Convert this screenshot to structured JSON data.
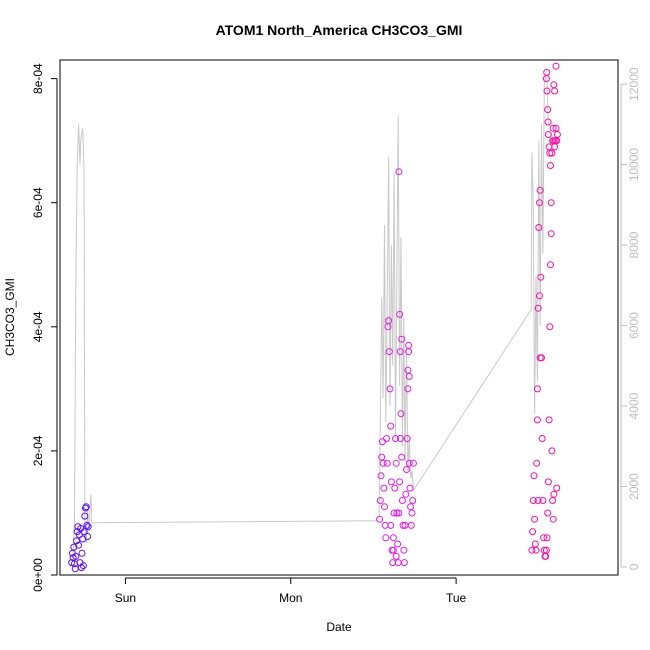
{
  "chart_data": {
    "type": "scatter",
    "title": "ATOM1 North_America CH3CO3_GMI",
    "xlabel": "Date",
    "ylabel": "CH3CO3_GMI",
    "x_ticks": [
      {
        "label": "Sun",
        "value": 0
      },
      {
        "label": "Mon",
        "value": 24
      },
      {
        "label": "Tue",
        "value": 48
      }
    ],
    "x_range_hours": [
      -9.5,
      71.5
    ],
    "y_left": {
      "range": [
        0,
        0.00083
      ],
      "ticks": [
        {
          "label": "0e+00",
          "value": 0
        },
        {
          "label": "2e-04",
          "value": 0.0002
        },
        {
          "label": "4e-04",
          "value": 0.0004
        },
        {
          "label": "6e-04",
          "value": 0.0006
        },
        {
          "label": "8e-04",
          "value": 0.0008
        }
      ]
    },
    "y_right": {
      "range": [
        -200,
        12600
      ],
      "color": "#bdbdbd",
      "ticks": [
        {
          "label": "0",
          "value": 0
        },
        {
          "label": "2000",
          "value": 2000
        },
        {
          "label": "4000",
          "value": 4000
        },
        {
          "label": "6000",
          "value": 6000
        },
        {
          "label": "8000",
          "value": 8000
        },
        {
          "label": "10000",
          "value": 10000
        },
        {
          "label": "12000",
          "value": 12000
        }
      ]
    },
    "secondary_line": {
      "color": "#c8c8c8",
      "points": [
        [
          -7.6,
          350
        ],
        [
          -7.4,
          1200
        ],
        [
          -7.2,
          7000
        ],
        [
          -7.0,
          10000
        ],
        [
          -6.8,
          11000
        ],
        [
          -6.6,
          10000
        ],
        [
          -6.5,
          10600
        ],
        [
          -6.3,
          10800
        ],
        [
          -6.2,
          10900
        ],
        [
          -6.0,
          9800
        ],
        [
          -5.9,
          1200
        ],
        [
          -5.7,
          600
        ],
        [
          -5.5,
          1400
        ],
        [
          -5.3,
          900
        ],
        [
          -5.1,
          1600
        ],
        [
          -5.0,
          1800
        ],
        [
          -4.9,
          1100
        ],
        [
          -4.8,
          1100
        ],
        [
          36.8,
          1150
        ],
        [
          37.0,
          3500
        ],
        [
          37.2,
          6700
        ],
        [
          37.4,
          4200
        ],
        [
          37.6,
          8500
        ],
        [
          37.8,
          3600
        ],
        [
          38.0,
          6500
        ],
        [
          38.2,
          10200
        ],
        [
          38.4,
          4000
        ],
        [
          38.6,
          8000
        ],
        [
          38.8,
          5000
        ],
        [
          39.0,
          9800
        ],
        [
          39.2,
          3200
        ],
        [
          39.4,
          7400
        ],
        [
          39.6,
          11200
        ],
        [
          39.8,
          4500
        ],
        [
          40.0,
          8200
        ],
        [
          40.2,
          3000
        ],
        [
          40.4,
          6200
        ],
        [
          40.6,
          2600
        ],
        [
          40.8,
          5400
        ],
        [
          41.0,
          2400
        ],
        [
          41.2,
          3200
        ],
        [
          41.4,
          2200
        ],
        [
          41.6,
          2400
        ],
        [
          41.8,
          1900
        ],
        [
          58.9,
          6400
        ],
        [
          59.0,
          10300
        ],
        [
          59.2,
          9000
        ],
        [
          59.4,
          3800
        ],
        [
          59.6,
          7200
        ],
        [
          59.8,
          4600
        ],
        [
          60.0,
          10600
        ],
        [
          60.2,
          6000
        ],
        [
          60.4,
          11000
        ],
        [
          60.6,
          7800
        ],
        [
          60.8,
          12000
        ],
        [
          61.0,
          12200
        ],
        [
          61.2,
          12100
        ],
        [
          61.4,
          11000
        ]
      ]
    },
    "series": [
      {
        "color": "#5a10ff",
        "points": [
          [
            -7.8,
            2e-05
          ],
          [
            -7.7,
            3.5e-05
          ],
          [
            -7.6,
            2.8e-05
          ],
          [
            -7.5,
            4.5e-05
          ],
          [
            -7.4,
            1.8e-05
          ],
          [
            -7.3,
            1e-05
          ],
          [
            -7.2,
            3e-05
          ],
          [
            -7.1,
            5.5e-05
          ],
          [
            -7.0,
            7e-05
          ],
          [
            -6.9,
            7.8e-05
          ],
          [
            -6.8,
            4.8e-05
          ],
          [
            -6.7,
            6.5e-05
          ],
          [
            -6.6,
            2e-05
          ],
          [
            -6.5,
            7.5e-05
          ],
          [
            -6.4,
            1.2e-05
          ],
          [
            -6.3,
            3.5e-05
          ],
          [
            -6.2,
            5.8e-05
          ],
          [
            -6.1,
            1.5e-05
          ],
          [
            -6.0,
            7e-05
          ],
          [
            -5.9,
            9.5e-05
          ],
          [
            -5.8,
            0.000108
          ],
          [
            -5.7,
            0.00011
          ],
          [
            -5.6,
            8e-05
          ],
          [
            -5.5,
            6.2e-05
          ],
          [
            -5.4,
            7.8e-05
          ]
        ]
      },
      {
        "color": "#e817f0",
        "points": [
          [
            36.9,
            9e-05
          ],
          [
            37.0,
            0.00012
          ],
          [
            37.1,
            0.00016
          ],
          [
            37.2,
            0.00019
          ],
          [
            37.3,
            0.000215
          ],
          [
            37.4,
            0.00018
          ],
          [
            37.5,
            0.00014
          ],
          [
            37.6,
            0.00011
          ],
          [
            37.7,
            8e-05
          ],
          [
            37.8,
            6e-05
          ],
          [
            37.9,
            0.00022
          ],
          [
            38.0,
            0.00018
          ],
          [
            38.1,
            0.0004
          ],
          [
            38.2,
            0.00041
          ],
          [
            38.3,
            0.00036
          ],
          [
            38.4,
            0.0003
          ],
          [
            38.5,
            0.00024
          ],
          [
            38.6,
            0.00015
          ],
          [
            38.7,
            4e-05
          ],
          [
            38.8,
            2e-05
          ],
          [
            38.9,
            6e-05
          ],
          [
            39.0,
            0.0001
          ],
          [
            39.1,
            0.00014
          ],
          [
            39.2,
            0.00022
          ],
          [
            39.3,
            0.00018
          ],
          [
            39.4,
            0.0001
          ],
          [
            39.5,
            5e-05
          ],
          [
            39.6,
            2e-05
          ],
          [
            39.7,
            0.0001
          ],
          [
            39.8,
            0.00015
          ],
          [
            39.9,
            0.00022
          ],
          [
            40.0,
            0.00026
          ],
          [
            40.1,
            0.00019
          ],
          [
            40.2,
            0.00012
          ],
          [
            40.3,
            8e-05
          ],
          [
            40.4,
            4e-05
          ],
          [
            40.5,
            2e-05
          ],
          [
            40.6,
            8e-05
          ],
          [
            40.7,
            0.00013
          ],
          [
            40.8,
            0.00017
          ],
          [
            40.9,
            0.00022
          ],
          [
            41.0,
            0.00033
          ],
          [
            41.1,
            0.00036
          ],
          [
            41.2,
            0.00018
          ],
          [
            41.3,
            0.00014
          ],
          [
            41.4,
            0.00011
          ],
          [
            41.5,
            8e-05
          ],
          [
            41.6,
            0.0001
          ],
          [
            41.7,
            0.00012
          ],
          [
            41.8,
            0.00018
          ],
          [
            39.7,
            0.00065
          ],
          [
            39.8,
            0.00042
          ],
          [
            39.9,
            0.00036
          ],
          [
            40.1,
            0.00038
          ],
          [
            41.0,
            0.0003
          ],
          [
            41.1,
            0.00037
          ],
          [
            41.2,
            0.00032
          ],
          [
            38.5,
            8e-05
          ],
          [
            38.9,
            4e-05
          ],
          [
            39.3,
            3e-05
          ]
        ]
      },
      {
        "color": "#ff0aa6",
        "points": [
          [
            59.0,
            4e-05
          ],
          [
            59.1,
            7e-05
          ],
          [
            59.2,
            0.00012
          ],
          [
            59.3,
            0.00016
          ],
          [
            59.4,
            9e-05
          ],
          [
            59.5,
            5e-05
          ],
          [
            59.6,
            4e-05
          ],
          [
            59.7,
            0.00018
          ],
          [
            59.8,
            0.0003
          ],
          [
            59.9,
            0.00043
          ],
          [
            60.0,
            0.00056
          ],
          [
            60.1,
            0.0006
          ],
          [
            60.2,
            0.00062
          ],
          [
            60.3,
            0.00048
          ],
          [
            60.4,
            0.00035
          ],
          [
            60.5,
            0.00022
          ],
          [
            60.6,
            0.00012
          ],
          [
            60.7,
            6e-05
          ],
          [
            60.8,
            4e-05
          ],
          [
            60.9,
            3e-05
          ],
          [
            61.0,
            3e-05
          ],
          [
            61.1,
            4e-05
          ],
          [
            61.2,
            6e-05
          ],
          [
            61.3,
            0.0001
          ],
          [
            61.4,
            0.00015
          ],
          [
            61.5,
            0.00025
          ],
          [
            61.6,
            0.0004
          ],
          [
            61.7,
            0.0005
          ],
          [
            61.8,
            0.0006
          ],
          [
            61.9,
            0.00068
          ],
          [
            62.0,
            0.0007
          ],
          [
            62.1,
            0.00072
          ],
          [
            62.2,
            0.0007
          ],
          [
            62.3,
            0.00069
          ],
          [
            62.4,
            0.0007
          ],
          [
            62.5,
            0.00072
          ],
          [
            62.6,
            0.0007
          ],
          [
            62.7,
            0.00071
          ],
          [
            61.1,
            0.0008
          ],
          [
            61.15,
            0.00081
          ],
          [
            61.2,
            0.00078
          ],
          [
            61.3,
            0.00075
          ],
          [
            61.35,
            0.00073
          ],
          [
            61.4,
            0.00071
          ],
          [
            61.5,
            0.00069
          ],
          [
            61.6,
            0.00068
          ],
          [
            61.7,
            0.00066
          ],
          [
            61.8,
            0.00055
          ],
          [
            62.2,
            0.00079
          ],
          [
            62.3,
            0.00078
          ],
          [
            62.5,
            0.00082
          ],
          [
            60.1,
            0.00045
          ],
          [
            60.2,
            0.00035
          ],
          [
            59.8,
            0.00025
          ],
          [
            59.9,
            0.00012
          ],
          [
            61.9,
            0.0002
          ],
          [
            62.0,
            0.00012
          ],
          [
            62.1,
            9e-05
          ],
          [
            62.2,
            0.00013
          ],
          [
            62.6,
            0.00014
          ]
        ]
      }
    ]
  }
}
